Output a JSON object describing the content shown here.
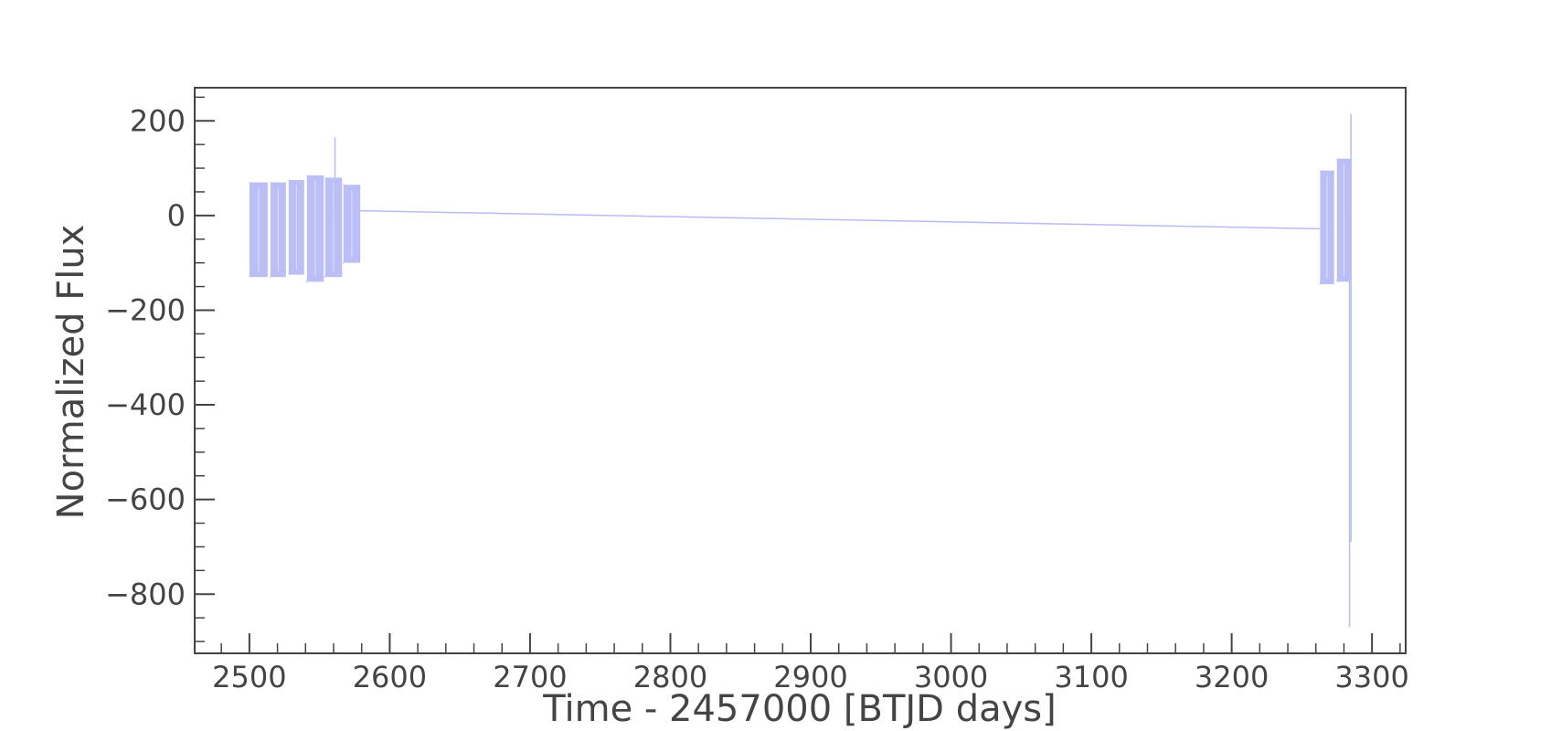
{
  "chart_data": {
    "type": "line",
    "title": "",
    "xlabel": "Time - 2457000 [BTJD days]",
    "ylabel": "Normalized Flux",
    "xlim": [
      2461,
      3324
    ],
    "ylim": [
      -925,
      270
    ],
    "x_ticks": [
      2500,
      2600,
      2700,
      2800,
      2900,
      3000,
      3100,
      3200,
      3300
    ],
    "x_tick_labels": [
      "2500",
      "2600",
      "2700",
      "2800",
      "2900",
      "3000",
      "3100",
      "3200",
      "3300"
    ],
    "y_ticks": [
      200,
      0,
      -200,
      -400,
      -600,
      -800
    ],
    "y_tick_labels": [
      "200",
      "0",
      "−200",
      "−400",
      "−600",
      "−800"
    ],
    "grid": false,
    "legend": "none",
    "line_color": "#b8bcf5",
    "axis_color": "#444444",
    "series": [
      {
        "segments": [
          {
            "x_start": 2500,
            "x_end": 2513,
            "y_top": 70,
            "y_bottom": -130
          },
          {
            "x_start": 2515,
            "x_end": 2526,
            "y_top": 70,
            "y_bottom": -130
          },
          {
            "x_start": 2528,
            "x_end": 2539,
            "y_top": 75,
            "y_bottom": -125
          },
          {
            "x_start": 2541,
            "x_end": 2553,
            "y_top": 85,
            "y_bottom": -140
          },
          {
            "x_start": 2554,
            "x_end": 2566,
            "y_top": 80,
            "y_bottom": -130
          },
          {
            "x_start": 2567,
            "x_end": 2579,
            "y_top": 65,
            "y_bottom": -100
          },
          {
            "x_start": 3263,
            "x_end": 3273,
            "y_top": 95,
            "y_bottom": -145
          },
          {
            "x_start": 3275,
            "x_end": 3285,
            "y_top": 120,
            "y_bottom": -140
          }
        ],
        "spikes": [
          {
            "x": 2561,
            "y": 165
          },
          {
            "x": 3285,
            "y": 215
          },
          {
            "x": 3284,
            "y": -870
          },
          {
            "x": 3285,
            "y": -690
          }
        ],
        "trend": [
          {
            "x": 2579,
            "y": 10
          },
          {
            "x": 3263,
            "y": -28
          }
        ]
      }
    ]
  }
}
